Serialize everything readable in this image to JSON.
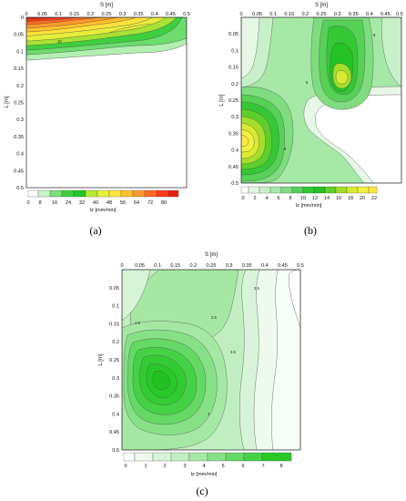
{
  "figure": {
    "panels": [
      {
        "id": "a",
        "panel_label": "(a)",
        "x_axis_title": "S [m]",
        "y_axis_title": "L [m]",
        "x_ticks": [
          "0",
          "0.05",
          "0.1",
          "0.15",
          "0.2",
          "0.25",
          "0.3",
          "0.35",
          "0.4",
          "0.45",
          "0.5"
        ],
        "y_ticks": [
          "0",
          "0.05",
          "0.1",
          "0.15",
          "0.2",
          "0.25",
          "0.3",
          "0.35",
          "0.4",
          "0.45",
          "0.5"
        ],
        "legend_title": "Iz [mm/min]",
        "legend_labels": [
          "0",
          "8",
          "16",
          "24",
          "32",
          "40",
          "48",
          "56",
          "64",
          "72",
          "80"
        ],
        "legend_colors": [
          "#ffffff",
          "#c8f5c8",
          "#7be07b",
          "#3ecf3e",
          "#22c822",
          "#b6ea2e",
          "#eaf03a",
          "#ffe23a",
          "#ffc02a",
          "#ff9a2a",
          "#ff6a22",
          "#ff3c1a",
          "#e81e14"
        ],
        "contour_labels": [
          "10"
        ]
      },
      {
        "id": "b",
        "panel_label": "(b)",
        "x_axis_title": "S [m]",
        "y_axis_title": "L [m]",
        "x_ticks": [
          "0",
          "0.05",
          "0.1",
          "0.15",
          "0.2",
          "0.25",
          "0.3",
          "0.35",
          "0.4",
          "0.45",
          "0.5"
        ],
        "y_ticks": [
          "0.05",
          "0.1",
          "0.15",
          "0.2",
          "0.25",
          "0.3",
          "0.35",
          "0.4",
          "0.45",
          "0.5"
        ],
        "legend_title": "Iz [mm/min]",
        "legend_labels": [
          "0",
          "2",
          "4",
          "6",
          "8",
          "10",
          "12",
          "14",
          "16",
          "18",
          "20",
          "22"
        ],
        "legend_colors": [
          "#ffffff",
          "#e6f7e6",
          "#c8f0c8",
          "#a6e8a6",
          "#7fdc7f",
          "#55d155",
          "#34c934",
          "#22c322",
          "#5ccf2a",
          "#a5de2a",
          "#d9ea32",
          "#f3f040",
          "#ffe640"
        ],
        "contour_labels": [
          "5",
          "6",
          "8"
        ]
      },
      {
        "id": "c",
        "panel_label": "(c)",
        "x_axis_title": "S [m]",
        "y_axis_title": "L [m]",
        "x_ticks": [
          "0",
          "0.05",
          "0.1",
          "0.15",
          "0.2",
          "0.25",
          "0.3",
          "0.35",
          "0.4",
          "0.45",
          "0.5"
        ],
        "y_ticks": [
          "0.05",
          "0.1",
          "0.15",
          "0.2",
          "0.25",
          "0.3",
          "0.35",
          "0.4",
          "0.45",
          "0.5"
        ],
        "legend_title": "Iz [mm/min]",
        "legend_labels": [
          "0",
          "1",
          "2",
          "3",
          "4",
          "5",
          "6",
          "7",
          "8"
        ],
        "legend_colors": [
          "#ffffff",
          "#eefaee",
          "#d8f4d8",
          "#c0eec0",
          "#a4e8a4",
          "#86e186",
          "#64d964",
          "#44d144",
          "#28c828"
        ],
        "contour_labels": [
          "2.5",
          "3.5",
          "2.5",
          "1.5",
          "4"
        ]
      }
    ]
  }
}
